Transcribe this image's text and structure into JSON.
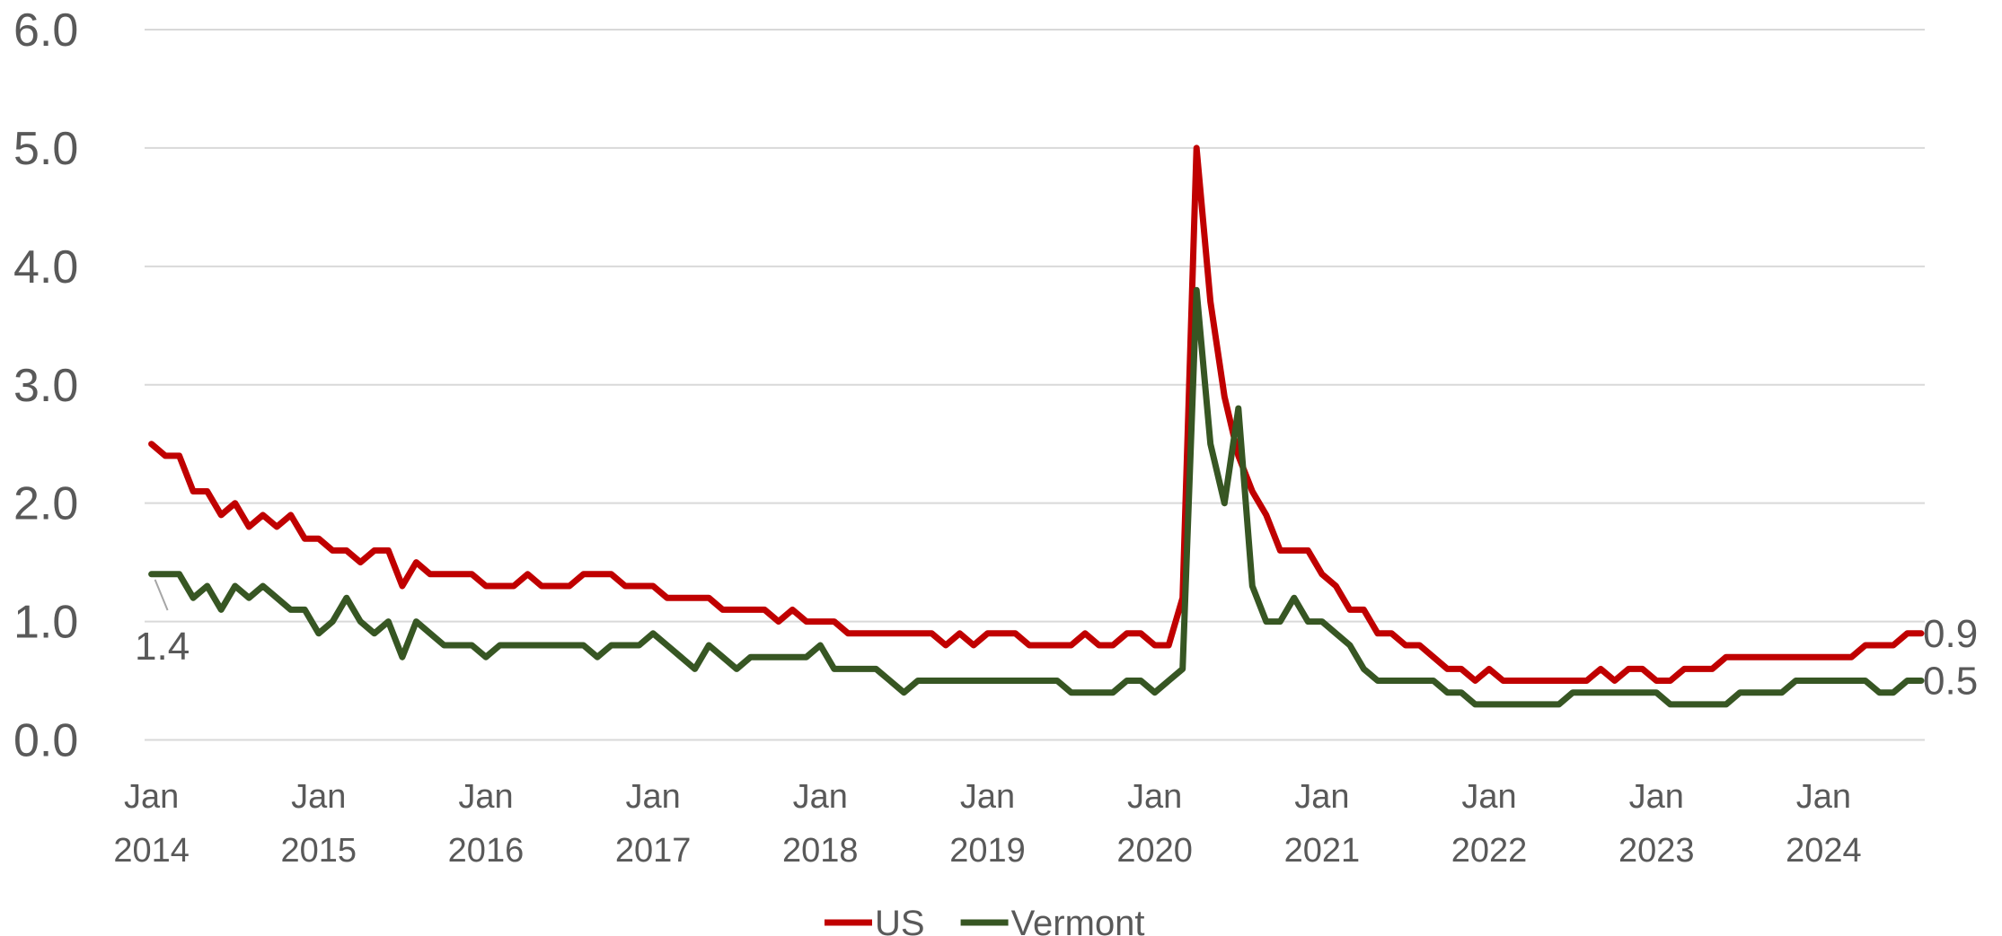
{
  "chart_data": {
    "type": "line",
    "categories": [
      "Jan 2014",
      null,
      null,
      null,
      null,
      null,
      null,
      null,
      null,
      null,
      null,
      null,
      "Jan 2015",
      null,
      null,
      null,
      null,
      null,
      null,
      null,
      null,
      null,
      null,
      null,
      "Jan 2016",
      null,
      null,
      null,
      null,
      null,
      null,
      null,
      null,
      null,
      null,
      null,
      "Jan 2017",
      null,
      null,
      null,
      null,
      null,
      null,
      null,
      null,
      null,
      null,
      null,
      "Jan 2018",
      null,
      null,
      null,
      null,
      null,
      null,
      null,
      null,
      null,
      null,
      null,
      "Jan 2019",
      null,
      null,
      null,
      null,
      null,
      null,
      null,
      null,
      null,
      null,
      null,
      "Jan 2020",
      null,
      null,
      null,
      null,
      null,
      null,
      null,
      null,
      null,
      null,
      null,
      "Jan 2021",
      null,
      null,
      null,
      null,
      null,
      null,
      null,
      null,
      null,
      null,
      null,
      "Jan 2022",
      null,
      null,
      null,
      null,
      null,
      null,
      null,
      null,
      null,
      null,
      null,
      "Jan 2023",
      null,
      null,
      null,
      null,
      null,
      null,
      null,
      null,
      null,
      null,
      null,
      "Jan 2024",
      null,
      null,
      null,
      null,
      null,
      null,
      null
    ],
    "series": [
      {
        "name": "US",
        "color": "#c00000",
        "values": [
          2.5,
          2.4,
          2.4,
          2.1,
          2.1,
          1.9,
          2.0,
          1.8,
          1.9,
          1.8,
          1.9,
          1.7,
          1.7,
          1.6,
          1.6,
          1.5,
          1.6,
          1.6,
          1.3,
          1.5,
          1.4,
          1.4,
          1.4,
          1.4,
          1.3,
          1.3,
          1.3,
          1.4,
          1.3,
          1.3,
          1.3,
          1.4,
          1.4,
          1.4,
          1.3,
          1.3,
          1.3,
          1.2,
          1.2,
          1.2,
          1.2,
          1.1,
          1.1,
          1.1,
          1.1,
          1.0,
          1.1,
          1.0,
          1.0,
          1.0,
          0.9,
          0.9,
          0.9,
          0.9,
          0.9,
          0.9,
          0.9,
          0.8,
          0.9,
          0.8,
          0.9,
          0.9,
          0.9,
          0.8,
          0.8,
          0.8,
          0.8,
          0.9,
          0.8,
          0.8,
          0.9,
          0.9,
          0.8,
          0.8,
          1.2,
          5.0,
          3.7,
          2.9,
          2.4,
          2.1,
          1.9,
          1.6,
          1.6,
          1.6,
          1.4,
          1.3,
          1.1,
          1.1,
          0.9,
          0.9,
          0.8,
          0.8,
          0.7,
          0.6,
          0.6,
          0.5,
          0.6,
          0.5,
          0.5,
          0.5,
          0.5,
          0.5,
          0.5,
          0.5,
          0.6,
          0.5,
          0.6,
          0.6,
          0.5,
          0.5,
          0.6,
          0.6,
          0.6,
          0.7,
          0.7,
          0.7,
          0.7,
          0.7,
          0.7,
          0.7,
          0.7,
          0.7,
          0.7,
          0.8,
          0.8,
          0.8,
          0.9,
          0.9
        ]
      },
      {
        "name": "Vermont",
        "color": "#375623",
        "values": [
          1.4,
          1.4,
          1.4,
          1.2,
          1.3,
          1.1,
          1.3,
          1.2,
          1.3,
          1.2,
          1.1,
          1.1,
          0.9,
          1.0,
          1.2,
          1.0,
          0.9,
          1.0,
          0.7,
          1.0,
          0.9,
          0.8,
          0.8,
          0.8,
          0.7,
          0.8,
          0.8,
          0.8,
          0.8,
          0.8,
          0.8,
          0.8,
          0.7,
          0.8,
          0.8,
          0.8,
          0.9,
          0.8,
          0.7,
          0.6,
          0.8,
          0.7,
          0.6,
          0.7,
          0.7,
          0.7,
          0.7,
          0.7,
          0.8,
          0.6,
          0.6,
          0.6,
          0.6,
          0.5,
          0.4,
          0.5,
          0.5,
          0.5,
          0.5,
          0.5,
          0.5,
          0.5,
          0.5,
          0.5,
          0.5,
          0.5,
          0.4,
          0.4,
          0.4,
          0.4,
          0.5,
          0.5,
          0.4,
          0.5,
          0.6,
          3.8,
          2.5,
          2.0,
          2.8,
          1.3,
          1.0,
          1.0,
          1.2,
          1.0,
          1.0,
          0.9,
          0.8,
          0.6,
          0.5,
          0.5,
          0.5,
          0.5,
          0.5,
          0.4,
          0.4,
          0.3,
          0.3,
          0.3,
          0.3,
          0.3,
          0.3,
          0.3,
          0.4,
          0.4,
          0.4,
          0.4,
          0.4,
          0.4,
          0.4,
          0.3,
          0.3,
          0.3,
          0.3,
          0.3,
          0.4,
          0.4,
          0.4,
          0.4,
          0.5,
          0.5,
          0.5,
          0.5,
          0.5,
          0.5,
          0.4,
          0.4,
          0.5,
          0.5
        ]
      }
    ],
    "ylim": [
      0,
      6
    ],
    "yticks": [
      {
        "value": 0,
        "label": "0.0"
      },
      {
        "value": 1,
        "label": "1.0"
      },
      {
        "value": 2,
        "label": "2.0"
      },
      {
        "value": 3,
        "label": "3.0"
      },
      {
        "value": 4,
        "label": "4.0"
      },
      {
        "value": 5,
        "label": "5.0"
      },
      {
        "value": 6,
        "label": "6.0"
      }
    ],
    "grid": true,
    "legend": "bottom"
  }
}
